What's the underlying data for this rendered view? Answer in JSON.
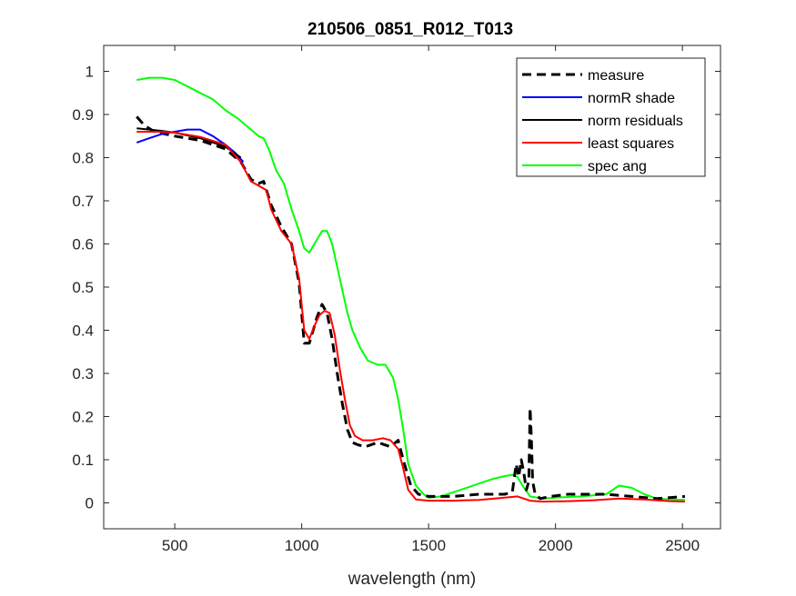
{
  "chart_data": {
    "type": "line",
    "title": "210506_0851_R012_T013",
    "xlabel": "wavelength (nm)",
    "ylabel": "",
    "xlim": [
      220,
      2650
    ],
    "ylim": [
      -0.06,
      1.06
    ],
    "xticks": [
      500,
      1000,
      1500,
      2000,
      2500
    ],
    "yticks": [
      0,
      0.1,
      0.2,
      0.3,
      0.4,
      0.5,
      0.6,
      0.7,
      0.8,
      0.9,
      1
    ],
    "xtick_labels": [
      "500",
      "1000",
      "1500",
      "2000",
      "2500"
    ],
    "ytick_labels": [
      "0",
      "0.1",
      "0.2",
      "0.3",
      "0.4",
      "0.5",
      "0.6",
      "0.7",
      "0.8",
      "0.9",
      "1"
    ],
    "grid": false,
    "legend_position": "top-right",
    "series": [
      {
        "name": "measure",
        "color": "#000000",
        "style": "dashed",
        "x": [
          350,
          380,
          420,
          500,
          600,
          700,
          760,
          800,
          830,
          850,
          880,
          920,
          960,
          990,
          1010,
          1030,
          1060,
          1080,
          1100,
          1120,
          1140,
          1160,
          1180,
          1200,
          1220,
          1250,
          1300,
          1350,
          1380,
          1400,
          1430,
          1460,
          1500,
          1550,
          1600,
          1700,
          1800,
          1830,
          1845,
          1855,
          1865,
          1875,
          1885,
          1895,
          1900,
          1905,
          1910,
          1920,
          1940,
          1980,
          2050,
          2200,
          2300,
          2400,
          2510
        ],
        "y": [
          0.895,
          0.875,
          0.86,
          0.85,
          0.84,
          0.82,
          0.79,
          0.75,
          0.74,
          0.745,
          0.69,
          0.64,
          0.6,
          0.51,
          0.37,
          0.37,
          0.43,
          0.46,
          0.44,
          0.38,
          0.3,
          0.23,
          0.17,
          0.14,
          0.135,
          0.13,
          0.14,
          0.13,
          0.145,
          0.1,
          0.04,
          0.02,
          0.015,
          0.015,
          0.015,
          0.02,
          0.02,
          0.025,
          0.09,
          0.06,
          0.1,
          0.07,
          0.03,
          0.05,
          0.22,
          0.15,
          0.05,
          0.02,
          0.01,
          0.015,
          0.02,
          0.02,
          0.015,
          0.01,
          0.015
        ]
      },
      {
        "name": "normR shade",
        "color": "#0000ff",
        "style": "solid",
        "x": [
          350,
          400,
          450,
          500,
          550,
          600,
          650,
          700,
          740,
          770
        ],
        "y": [
          0.835,
          0.845,
          0.855,
          0.86,
          0.865,
          0.865,
          0.85,
          0.83,
          0.81,
          0.79
        ]
      },
      {
        "name": "norm residuals",
        "color": "#000000",
        "style": "solid",
        "x": [
          350,
          400,
          450,
          500,
          600,
          700,
          760
        ],
        "y": [
          0.868,
          0.865,
          0.862,
          0.858,
          0.845,
          0.825,
          0.8
        ]
      },
      {
        "name": "least squares",
        "color": "#ff0000",
        "style": "solid",
        "x": [
          350,
          400,
          450,
          500,
          600,
          700,
          760,
          800,
          830,
          860,
          880,
          920,
          960,
          990,
          1010,
          1030,
          1050,
          1070,
          1090,
          1110,
          1130,
          1150,
          1170,
          1190,
          1210,
          1240,
          1280,
          1320,
          1350,
          1380,
          1400,
          1420,
          1450,
          1500,
          1600,
          1700,
          1800,
          1850,
          1900,
          1950,
          2050,
          2150,
          2250,
          2350,
          2450,
          2510
        ],
        "y": [
          0.86,
          0.86,
          0.86,
          0.858,
          0.848,
          0.83,
          0.79,
          0.745,
          0.735,
          0.725,
          0.68,
          0.63,
          0.6,
          0.52,
          0.4,
          0.38,
          0.41,
          0.435,
          0.445,
          0.44,
          0.39,
          0.31,
          0.24,
          0.18,
          0.155,
          0.145,
          0.145,
          0.15,
          0.145,
          0.125,
          0.08,
          0.03,
          0.008,
          0.005,
          0.005,
          0.007,
          0.012,
          0.015,
          0.005,
          0.003,
          0.004,
          0.006,
          0.01,
          0.008,
          0.004,
          0.003
        ]
      },
      {
        "name": "spec ang",
        "color": "#00ff00",
        "style": "solid",
        "x": [
          350,
          400,
          450,
          500,
          550,
          600,
          650,
          700,
          750,
          800,
          830,
          850,
          870,
          900,
          930,
          960,
          990,
          1010,
          1030,
          1050,
          1080,
          1100,
          1120,
          1150,
          1180,
          1200,
          1230,
          1260,
          1300,
          1330,
          1360,
          1380,
          1400,
          1420,
          1450,
          1480,
          1500,
          1550,
          1600,
          1650,
          1700,
          1750,
          1800,
          1830,
          1850,
          1870,
          1900,
          1950,
          2000,
          2100,
          2200,
          2250,
          2300,
          2350,
          2400,
          2450,
          2510
        ],
        "y": [
          0.98,
          0.985,
          0.985,
          0.98,
          0.965,
          0.95,
          0.935,
          0.91,
          0.89,
          0.865,
          0.85,
          0.845,
          0.82,
          0.77,
          0.74,
          0.68,
          0.63,
          0.59,
          0.58,
          0.6,
          0.63,
          0.63,
          0.6,
          0.52,
          0.44,
          0.4,
          0.36,
          0.33,
          0.32,
          0.32,
          0.29,
          0.24,
          0.17,
          0.09,
          0.04,
          0.02,
          0.012,
          0.015,
          0.025,
          0.035,
          0.045,
          0.055,
          0.062,
          0.065,
          0.06,
          0.04,
          0.015,
          0.01,
          0.012,
          0.015,
          0.02,
          0.04,
          0.035,
          0.02,
          0.01,
          0.008,
          0.007
        ]
      }
    ]
  }
}
